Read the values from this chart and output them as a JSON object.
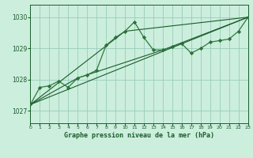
{
  "title": "Graphe pression niveau de la mer (hPa)",
  "background_color": "#cceedd",
  "grid_color": "#99ccbb",
  "line_color_dark": "#1a5c2a",
  "line_color_mid": "#2d7a3a",
  "xlim": [
    0,
    23
  ],
  "ylim": [
    1026.6,
    1030.4
  ],
  "yticks": [
    1027,
    1028,
    1029,
    1030
  ],
  "xticks": [
    0,
    1,
    2,
    3,
    4,
    5,
    6,
    7,
    8,
    9,
    10,
    11,
    12,
    13,
    14,
    15,
    16,
    17,
    18,
    19,
    20,
    21,
    22,
    23
  ],
  "series1": [
    [
      0,
      1027.2
    ],
    [
      1,
      1027.75
    ],
    [
      2,
      1027.8
    ],
    [
      3,
      1027.95
    ],
    [
      4,
      1027.75
    ],
    [
      5,
      1028.05
    ],
    [
      6,
      1028.15
    ],
    [
      7,
      1028.3
    ],
    [
      8,
      1029.1
    ],
    [
      9,
      1029.35
    ],
    [
      10,
      1029.55
    ],
    [
      11,
      1029.85
    ],
    [
      12,
      1029.35
    ],
    [
      13,
      1028.95
    ],
    [
      14,
      1028.95
    ],
    [
      15,
      1029.05
    ],
    [
      16,
      1029.15
    ],
    [
      17,
      1028.85
    ],
    [
      18,
      1029.0
    ],
    [
      19,
      1029.2
    ],
    [
      20,
      1029.25
    ],
    [
      21,
      1029.3
    ],
    [
      22,
      1029.55
    ],
    [
      23,
      1030.0
    ]
  ],
  "series2": [
    [
      0,
      1027.2
    ],
    [
      23,
      1030.0
    ]
  ],
  "series3": [
    [
      0,
      1027.2
    ],
    [
      5,
      1028.05
    ],
    [
      14,
      1028.95
    ],
    [
      23,
      1030.0
    ]
  ],
  "series4": [
    [
      0,
      1027.2
    ],
    [
      10,
      1029.55
    ],
    [
      23,
      1030.0
    ]
  ]
}
